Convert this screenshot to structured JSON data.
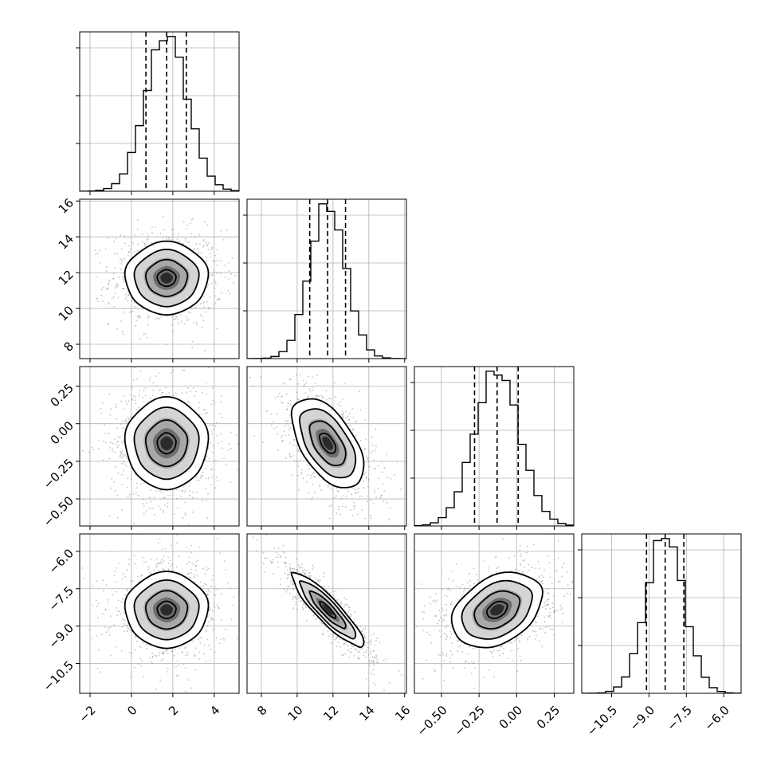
{
  "chart_data": {
    "type": "corner",
    "parameters": [
      {
        "range": [
          -2.5,
          5.2
        ],
        "mean": 1.7,
        "sd": 1.0,
        "quantiles": [
          0.7,
          1.7,
          2.65
        ],
        "ticks": [
          -2,
          0,
          2,
          4
        ],
        "tick_labels": [
          "−2",
          "0",
          "2",
          "4"
        ]
      },
      {
        "range": [
          7.2,
          16.1
        ],
        "mean": 11.7,
        "sd": 1.0,
        "quantiles": [
          10.7,
          11.7,
          12.7
        ],
        "ticks": [
          8,
          10,
          12,
          14,
          16
        ],
        "tick_labels": [
          "8",
          "10",
          "12",
          "14",
          "16"
        ]
      },
      {
        "range": [
          -0.68,
          0.38
        ],
        "mean": -0.13,
        "sd": 0.15,
        "quantiles": [
          -0.28,
          -0.13,
          0.01
        ],
        "ticks": [
          -0.5,
          -0.25,
          0.0,
          0.25
        ],
        "tick_labels": [
          "−0.50",
          "−0.25",
          "0.00",
          "0.25"
        ]
      },
      {
        "range": [
          -11.7,
          -5.3
        ],
        "mean": -8.35,
        "sd": 0.75,
        "quantiles": [
          -9.1,
          -8.35,
          -7.6
        ],
        "ticks": [
          -10.5,
          -9.0,
          -7.5,
          -6.0
        ],
        "tick_labels": [
          "−10.5",
          "−9.0",
          "−7.5",
          "−6.0"
        ]
      }
    ],
    "correlations": [
      {
        "pair": [
          0,
          1
        ],
        "rho": 0.0
      },
      {
        "pair": [
          0,
          2
        ],
        "rho": 0.0
      },
      {
        "pair": [
          1,
          2
        ],
        "rho": -0.55
      },
      {
        "pair": [
          0,
          3
        ],
        "rho": 0.0
      },
      {
        "pair": [
          1,
          3
        ],
        "rho": -0.9
      },
      {
        "pair": [
          2,
          3
        ],
        "rho": 0.35
      }
    ],
    "histogram_bins": 20,
    "grid": true,
    "title": "",
    "legend": "none"
  }
}
